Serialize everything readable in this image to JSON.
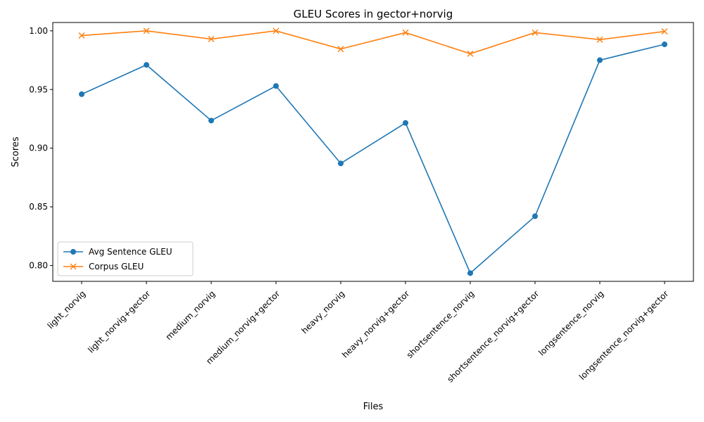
{
  "chart_data": {
    "type": "line",
    "title": "GLEU Scores in gector+norvig",
    "xlabel": "Files",
    "ylabel": "Scores",
    "categories": [
      "light_norvig",
      "light_norvig+gector",
      "medium_norvig",
      "medium_norvig+gector",
      "heavy_norvig",
      "heavy_norvig+gector",
      "shortsentence_norvig",
      "shortsentence_norvig+gector",
      "longsentence_norvig",
      "longsentence_norvig+gector"
    ],
    "series": [
      {
        "name": "Avg Sentence GLEU",
        "marker": "circle",
        "color": "#1f77b4",
        "values": [
          0.946,
          0.971,
          0.9235,
          0.953,
          0.887,
          0.9215,
          0.7935,
          0.842,
          0.975,
          0.9885
        ]
      },
      {
        "name": "Corpus GLEU",
        "marker": "x",
        "color": "#ff7f0e",
        "values": [
          0.996,
          1.0,
          0.993,
          1.0,
          0.9845,
          0.9985,
          0.9805,
          0.9985,
          0.9925,
          0.9995
        ]
      }
    ],
    "ylim": [
      0.7865,
      1.0071
    ],
    "yticks": [
      "0.80",
      "0.85",
      "0.90",
      "0.95",
      "1.00"
    ],
    "grid": false,
    "legend_position": "lower-left"
  }
}
